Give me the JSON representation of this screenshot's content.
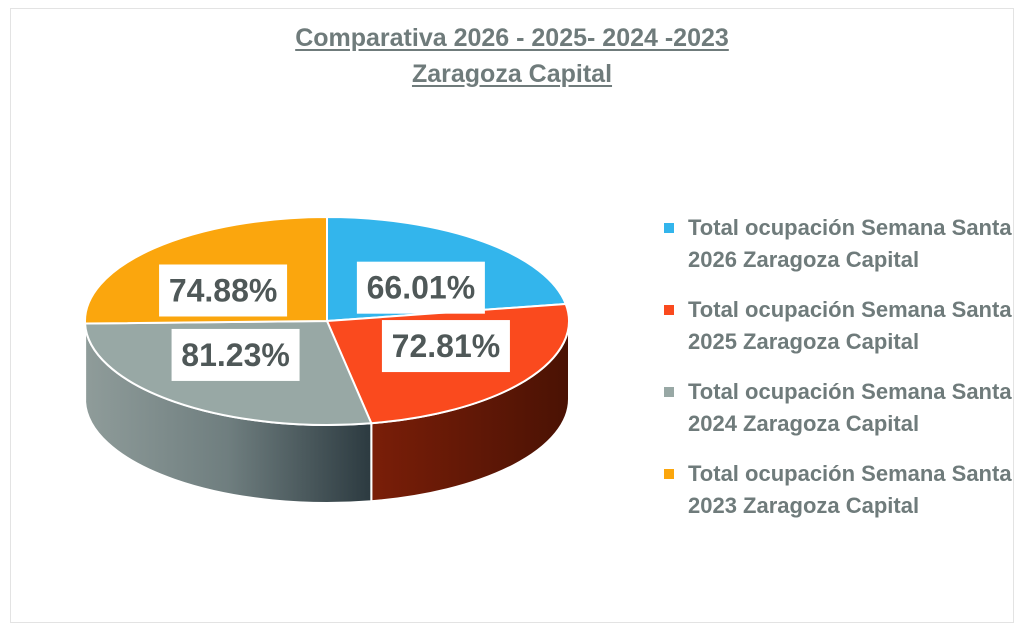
{
  "title_line1": "Comparativa 2026 - 2025- 2024 -2023",
  "title_line2": "Zaragoza Capital",
  "chart_data": {
    "type": "pie",
    "title": "Comparativa 2026 - 2025- 2024 -2023 Zaragoza Capital",
    "categories": [
      "Total ocupación Semana Santa 2026 Zaragoza Capital",
      "Total ocupación Semana Santa 2025 Zaragoza Capital",
      "Total ocupación Semana Santa 2024 Zaragoza Capital",
      "Total ocupación Semana Santa 2023 Zaragoza Capital"
    ],
    "values": [
      66.01,
      72.81,
      81.23,
      74.88
    ],
    "labels": [
      "66.01%",
      "72.81%",
      "81.23%",
      "74.88%"
    ],
    "colors": [
      "#33b5ec",
      "#fa4a1e",
      "#98a8a5",
      "#fba60d"
    ],
    "legend_position": "right",
    "style": "3d-pie"
  }
}
